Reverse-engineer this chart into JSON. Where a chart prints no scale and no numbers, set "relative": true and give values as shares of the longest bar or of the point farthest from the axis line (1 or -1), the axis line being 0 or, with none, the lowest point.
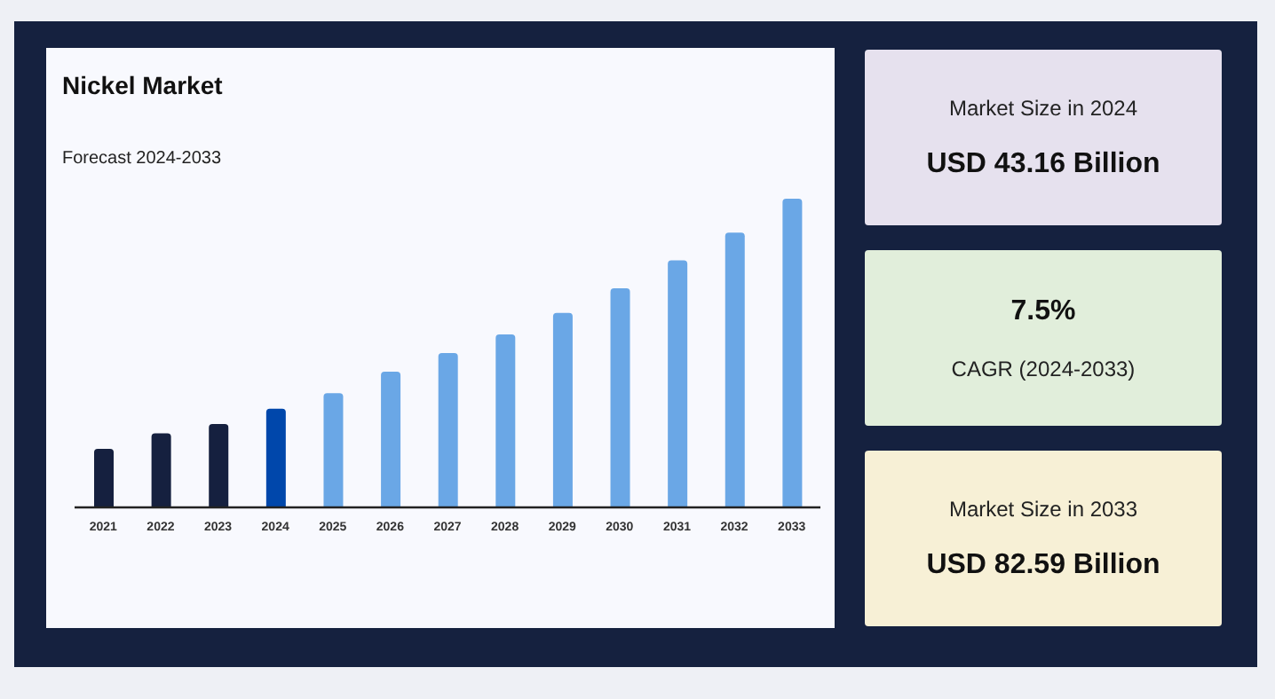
{
  "chart_data": [
    {
      "type": "bar",
      "title": "Nickel Market",
      "subtitle": "Forecast 2024-2033",
      "relative": true,
      "categories": [
        "2021",
        "2022",
        "2023",
        "2024",
        "2025",
        "2026",
        "2027",
        "2028",
        "2029",
        "2030",
        "2031",
        "2032",
        "2033"
      ],
      "values": [
        0.19,
        0.24,
        0.27,
        0.32,
        0.37,
        0.44,
        0.5,
        0.56,
        0.63,
        0.71,
        0.8,
        0.89,
        1
      ],
      "colors": [
        "#15203f",
        "#15203f",
        "#15203f",
        "#0047ab",
        "#6aa7e6",
        "#6aa7e6",
        "#6aa7e6",
        "#6aa7e6",
        "#6aa7e6",
        "#6aa7e6",
        "#6aa7e6",
        "#6aa7e6",
        "#6aa7e6"
      ]
    },
    {
      "type": "other",
      "subtitle": "Market Size in 2024",
      "title": "USD 43.16 Billion"
    },
    {
      "type": "other",
      "title": "7.5%",
      "subtitle": "CAGR (2024-2033)"
    },
    {
      "type": "other",
      "subtitle": "Market Size in 2033",
      "title": "USD 82.59 Billion"
    }
  ]
}
